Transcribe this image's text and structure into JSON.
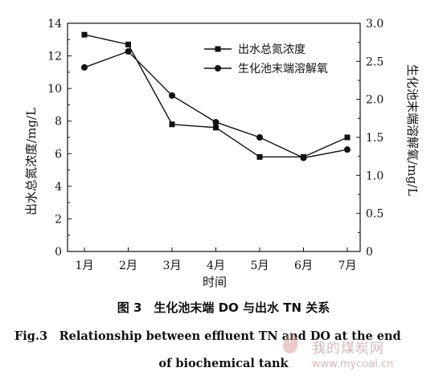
{
  "chart_data": {
    "type": "line",
    "categories": [
      "1月",
      "2月",
      "3月",
      "4月",
      "5月",
      "6月",
      "7月"
    ],
    "xlabel": "时间",
    "ylabel_left": "出水总氮浓度/mg/L",
    "ylabel_right": "生化池末端溶解氧/mg/L",
    "ylim_left": [
      0,
      14
    ],
    "yticks_left": [
      "0",
      "2",
      "4",
      "6",
      "8",
      "10",
      "12",
      "14"
    ],
    "ylim_right": [
      0,
      3.0
    ],
    "yticks_right": [
      "0",
      "0.5",
      "1.0",
      "1.5",
      "2.0",
      "2.5",
      "3.0"
    ],
    "grid": false,
    "legend_position": "top-right",
    "series": [
      {
        "name": "出水总氮浓度",
        "axis": "left",
        "marker": "square",
        "values": [
          13.3,
          12.7,
          7.8,
          7.6,
          5.8,
          5.8,
          7.0
        ]
      },
      {
        "name": "生化池末端溶解氧",
        "axis": "right",
        "marker": "circle",
        "values": [
          2.42,
          2.63,
          2.05,
          1.7,
          1.5,
          1.23,
          1.34
        ]
      }
    ]
  },
  "caption": {
    "cn": "图 3　生化池末端 DO 与出水 TN 关系",
    "en_line1": "Fig.3　Relationship between effluent TN and DO at the end",
    "en_line2": "of biochemical tank"
  },
  "watermark": {
    "text": "我的煤炭网",
    "url": "www.mycoal.cn"
  }
}
